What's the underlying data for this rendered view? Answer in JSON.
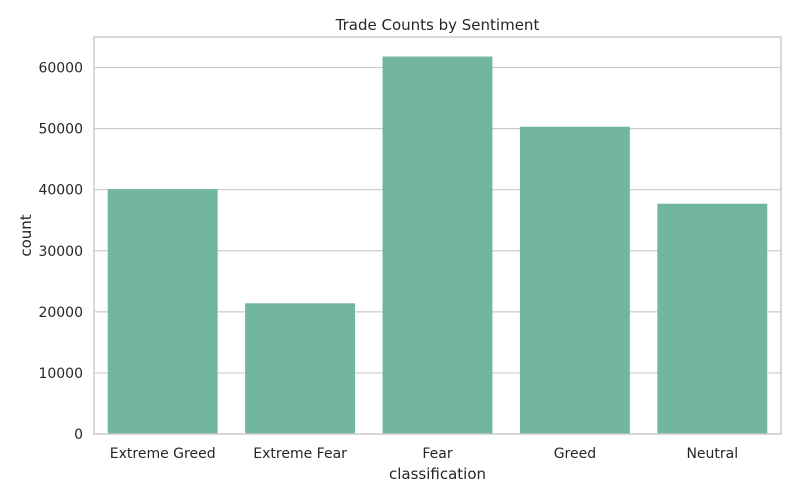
{
  "chart_data": {
    "type": "bar",
    "title": "Trade Counts by Sentiment",
    "xlabel": "classification",
    "ylabel": "count",
    "categories": [
      "Extreme Greed",
      "Extreme Fear",
      "Fear",
      "Greed",
      "Neutral"
    ],
    "values": [
      40100,
      21400,
      61800,
      50300,
      37700
    ],
    "ylim": [
      0,
      65000
    ],
    "yticks": [
      0,
      10000,
      20000,
      30000,
      40000,
      50000,
      60000
    ],
    "grid": true,
    "bar_color": "#72b6a1"
  }
}
